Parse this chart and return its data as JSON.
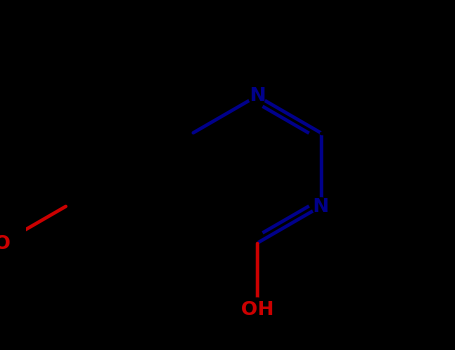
{
  "bg_color": "#000000",
  "bond_color": "#000000",
  "n_color": "#00008B",
  "o_color": "#CC0000",
  "line_width": 2.5,
  "font_size": 14,
  "figsize": [
    4.55,
    3.5
  ],
  "dpi": 100,
  "xlim": [
    -4.5,
    4.5
  ],
  "ylim": [
    -3.2,
    3.8
  ],
  "scale": 1.55,
  "bl": 1.0
}
